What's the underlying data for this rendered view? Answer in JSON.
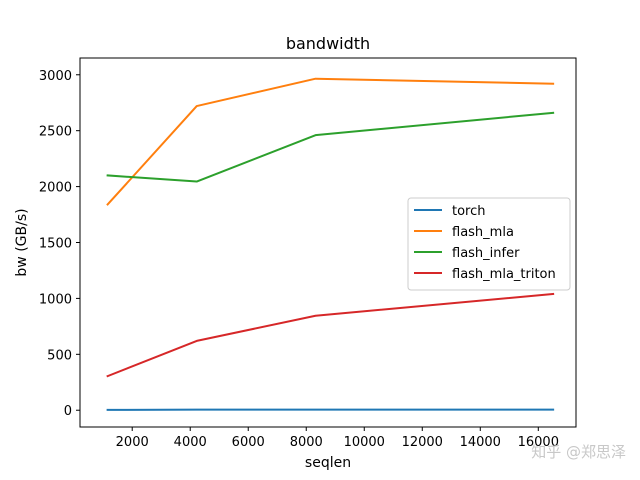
{
  "watermark": "知乎 @郑思泽",
  "chart_data": {
    "type": "line",
    "title": "bandwidth",
    "xlabel": "seqlen",
    "ylabel": "bw (GB/s)",
    "xlim": [
      200,
      17300
    ],
    "ylim": [
      -150,
      3150
    ],
    "x_ticks": [
      2000,
      4000,
      6000,
      8000,
      10000,
      12000,
      14000,
      16000
    ],
    "y_ticks": [
      0,
      500,
      1000,
      1500,
      2000,
      2500,
      3000
    ],
    "legend_position": "center-right",
    "grid": false,
    "x": [
      1152,
      4224,
      8320,
      16512
    ],
    "series": [
      {
        "name": "torch",
        "color": "#1f77b4",
        "values": [
          3,
          5,
          5,
          5
        ]
      },
      {
        "name": "flash_mla",
        "color": "#ff7f0e",
        "values": [
          1840,
          2720,
          2965,
          2920
        ]
      },
      {
        "name": "flash_infer",
        "color": "#2ca02c",
        "values": [
          2100,
          2045,
          2460,
          2660
        ]
      },
      {
        "name": "flash_mla_triton",
        "color": "#d62728",
        "values": [
          305,
          620,
          845,
          1040
        ]
      }
    ]
  }
}
